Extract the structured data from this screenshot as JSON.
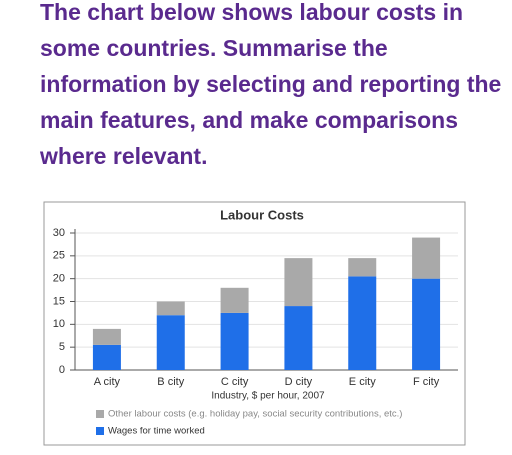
{
  "prompt": "The chart below shows labour costs in some countries. Summarise the information by selecting and reporting the main features, and make comparisons where relevant.",
  "chart_data": {
    "type": "stacked_bar",
    "title": "Labour Costs",
    "x_label": "Industry, $ per hour, 2007",
    "categories": [
      "A city",
      "B city",
      "C city",
      "D city",
      "E city",
      "F city"
    ],
    "series": [
      {
        "name": "Wages for time worked",
        "color": "#1f6fe8",
        "values": [
          5.5,
          12,
          12.5,
          14,
          20.5,
          20
        ]
      },
      {
        "name": "Other labour costs (e.g. holiday pay, social security contributions, etc.)",
        "color": "#a9a9a9",
        "values": [
          3.5,
          3,
          5.5,
          10.5,
          4,
          9
        ]
      }
    ],
    "ylim": [
      0,
      30
    ],
    "yticks": [
      0,
      5,
      10,
      15,
      20,
      25,
      30
    ],
    "grid": true
  }
}
